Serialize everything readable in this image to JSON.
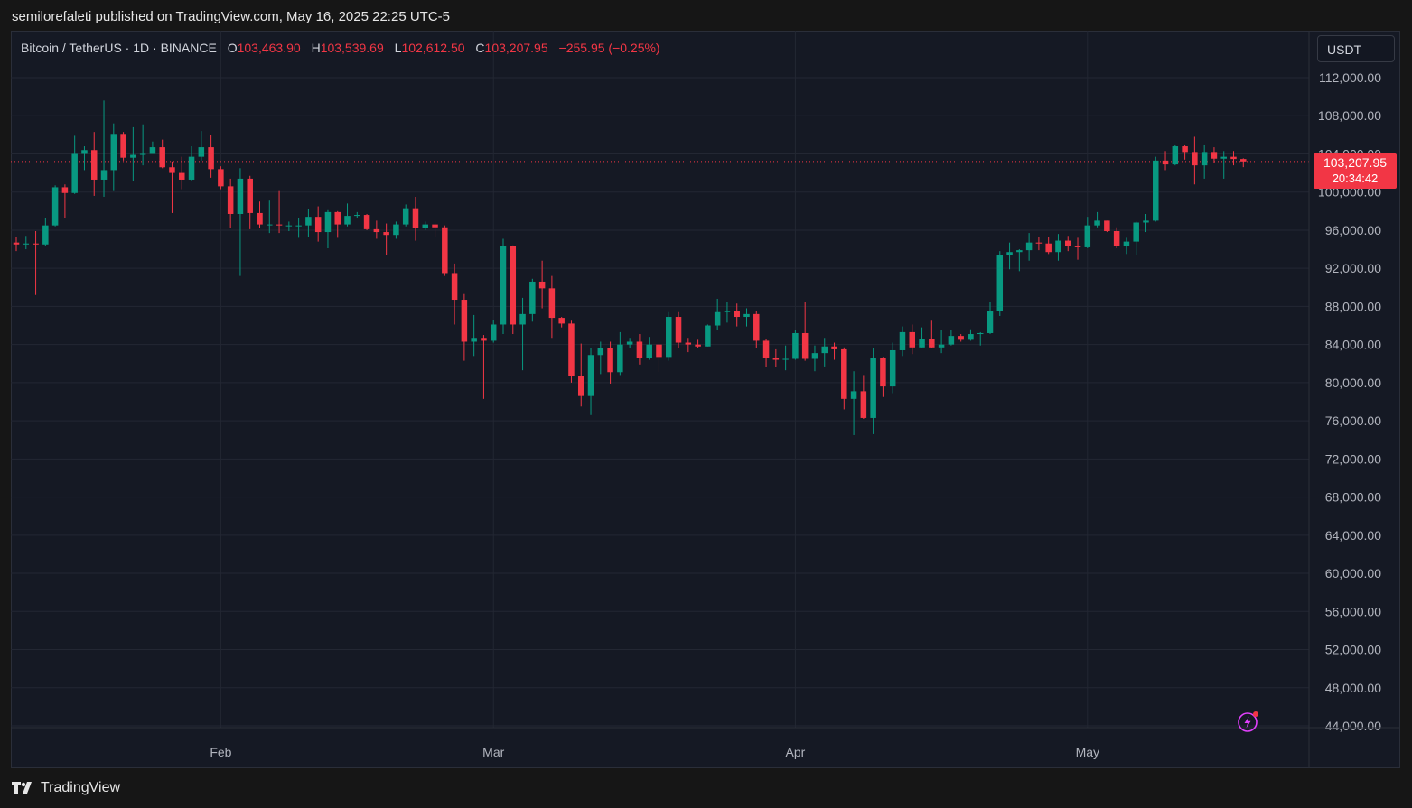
{
  "header": {
    "publish_text": "semilorefaleti published on TradingView.com, May 16, 2025 22:25 UTC-5"
  },
  "legend": {
    "symbol": "Bitcoin / TetherUS · 1D · BINANCE",
    "open_label": "O",
    "open": "103,463.90",
    "high_label": "H",
    "high": "103,539.69",
    "low_label": "L",
    "low": "102,612.50",
    "close_label": "C",
    "close": "103,207.95",
    "change": "−255.95 (−0.25%)"
  },
  "currency_button": "USDT",
  "price_tag": {
    "price": "103,207.95",
    "countdown": "20:34:42"
  },
  "footer": {
    "brand": "TradingView"
  },
  "icons": {
    "alert": "lightning-icon",
    "logo": "tradingview-logo-icon"
  },
  "colors": {
    "background": "#151924",
    "up": "#089981",
    "down": "#f23645",
    "grid": "#232733",
    "axis_text": "#b2b5be"
  },
  "chart_data": {
    "type": "candlestick",
    "ylim": [
      43000,
      114000
    ],
    "y_ticks": [
      "112,000.00",
      "108,000.00",
      "104,000.00",
      "100,000.00",
      "96,000.00",
      "92,000.00",
      "88,000.00",
      "84,000.00",
      "80,000.00",
      "76,000.00",
      "72,000.00",
      "68,000.00",
      "64,000.00",
      "60,000.00",
      "56,000.00",
      "52,000.00",
      "48,000.00",
      "44,000.00"
    ],
    "x_ticks": [
      {
        "label": "Feb",
        "date": "2025-02-01"
      },
      {
        "label": "Mar",
        "date": "2025-03-01"
      },
      {
        "label": "Apr",
        "date": "2025-04-01"
      },
      {
        "label": "May",
        "date": "2025-05-01"
      }
    ],
    "last_price": 103207.95,
    "candles": [
      {
        "d": "2025-01-11",
        "o": 94700,
        "h": 95300,
        "l": 93800,
        "c": 94500
      },
      {
        "d": "2025-01-12",
        "o": 94500,
        "h": 95400,
        "l": 94000,
        "c": 94600
      },
      {
        "d": "2025-01-13",
        "o": 94600,
        "h": 95900,
        "l": 89200,
        "c": 94500
      },
      {
        "d": "2025-01-14",
        "o": 94500,
        "h": 97300,
        "l": 94300,
        "c": 96500
      },
      {
        "d": "2025-01-15",
        "o": 96500,
        "h": 100700,
        "l": 96400,
        "c": 100500
      },
      {
        "d": "2025-01-16",
        "o": 100500,
        "h": 100800,
        "l": 97300,
        "c": 99900
      },
      {
        "d": "2025-01-17",
        "o": 99900,
        "h": 105900,
        "l": 99800,
        "c": 104000
      },
      {
        "d": "2025-01-18",
        "o": 104000,
        "h": 104800,
        "l": 102300,
        "c": 104400
      },
      {
        "d": "2025-01-19",
        "o": 104400,
        "h": 106300,
        "l": 99600,
        "c": 101300
      },
      {
        "d": "2025-01-20",
        "o": 101300,
        "h": 109600,
        "l": 99500,
        "c": 102300
      },
      {
        "d": "2025-01-21",
        "o": 102300,
        "h": 107200,
        "l": 100100,
        "c": 106100
      },
      {
        "d": "2025-01-22",
        "o": 106100,
        "h": 106300,
        "l": 103300,
        "c": 103600
      },
      {
        "d": "2025-01-23",
        "o": 103600,
        "h": 106800,
        "l": 101200,
        "c": 103900
      },
      {
        "d": "2025-01-24",
        "o": 103900,
        "h": 107100,
        "l": 102800,
        "c": 104000
      },
      {
        "d": "2025-01-25",
        "o": 104000,
        "h": 105300,
        "l": 104000,
        "c": 104700
      },
      {
        "d": "2025-01-26",
        "o": 104700,
        "h": 105500,
        "l": 102500,
        "c": 102600
      },
      {
        "d": "2025-01-27",
        "o": 102600,
        "h": 103200,
        "l": 97800,
        "c": 102000
      },
      {
        "d": "2025-01-28",
        "o": 102000,
        "h": 103700,
        "l": 100300,
        "c": 101300
      },
      {
        "d": "2025-01-29",
        "o": 101300,
        "h": 104800,
        "l": 101200,
        "c": 103700
      },
      {
        "d": "2025-01-30",
        "o": 103700,
        "h": 106400,
        "l": 103300,
        "c": 104700
      },
      {
        "d": "2025-01-31",
        "o": 104700,
        "h": 106000,
        "l": 101500,
        "c": 102400
      },
      {
        "d": "2025-02-01",
        "o": 102400,
        "h": 102700,
        "l": 100300,
        "c": 100600
      },
      {
        "d": "2025-02-02",
        "o": 100600,
        "h": 101400,
        "l": 96200,
        "c": 97700
      },
      {
        "d": "2025-02-03",
        "o": 97700,
        "h": 102500,
        "l": 91200,
        "c": 101400
      },
      {
        "d": "2025-02-04",
        "o": 101400,
        "h": 101700,
        "l": 96100,
        "c": 97800
      },
      {
        "d": "2025-02-05",
        "o": 97800,
        "h": 99000,
        "l": 96200,
        "c": 96600
      },
      {
        "d": "2025-02-06",
        "o": 96600,
        "h": 99100,
        "l": 95700,
        "c": 96600
      },
      {
        "d": "2025-02-07",
        "o": 96600,
        "h": 100100,
        "l": 95700,
        "c": 96500
      },
      {
        "d": "2025-02-08",
        "o": 96500,
        "h": 96900,
        "l": 95900,
        "c": 96500
      },
      {
        "d": "2025-02-09",
        "o": 96500,
        "h": 97300,
        "l": 95200,
        "c": 96500
      },
      {
        "d": "2025-02-10",
        "o": 96500,
        "h": 98200,
        "l": 95300,
        "c": 97400
      },
      {
        "d": "2025-02-11",
        "o": 97400,
        "h": 98500,
        "l": 94800,
        "c": 95800
      },
      {
        "d": "2025-02-12",
        "o": 95800,
        "h": 98100,
        "l": 94100,
        "c": 97900
      },
      {
        "d": "2025-02-13",
        "o": 97900,
        "h": 98000,
        "l": 95200,
        "c": 96600
      },
      {
        "d": "2025-02-14",
        "o": 96600,
        "h": 98800,
        "l": 96400,
        "c": 97500
      },
      {
        "d": "2025-02-15",
        "o": 97500,
        "h": 97900,
        "l": 97300,
        "c": 97600
      },
      {
        "d": "2025-02-16",
        "o": 97600,
        "h": 97700,
        "l": 96000,
        "c": 96100
      },
      {
        "d": "2025-02-17",
        "o": 96100,
        "h": 97000,
        "l": 95100,
        "c": 95800
      },
      {
        "d": "2025-02-18",
        "o": 95800,
        "h": 96700,
        "l": 93400,
        "c": 95500
      },
      {
        "d": "2025-02-19",
        "o": 95500,
        "h": 96900,
        "l": 95100,
        "c": 96600
      },
      {
        "d": "2025-02-20",
        "o": 96600,
        "h": 98700,
        "l": 96400,
        "c": 98300
      },
      {
        "d": "2025-02-21",
        "o": 98300,
        "h": 99500,
        "l": 94900,
        "c": 96200
      },
      {
        "d": "2025-02-22",
        "o": 96200,
        "h": 96900,
        "l": 96000,
        "c": 96600
      },
      {
        "d": "2025-02-23",
        "o": 96600,
        "h": 96700,
        "l": 95300,
        "c": 96300
      },
      {
        "d": "2025-02-24",
        "o": 96300,
        "h": 96500,
        "l": 91200,
        "c": 91500
      },
      {
        "d": "2025-02-25",
        "o": 91500,
        "h": 92500,
        "l": 86100,
        "c": 88700
      },
      {
        "d": "2025-02-26",
        "o": 88700,
        "h": 89300,
        "l": 82300,
        "c": 84300
      },
      {
        "d": "2025-02-27",
        "o": 84300,
        "h": 87100,
        "l": 82800,
        "c": 84700
      },
      {
        "d": "2025-02-28",
        "o": 84700,
        "h": 85000,
        "l": 78300,
        "c": 84400
      },
      {
        "d": "2025-03-01",
        "o": 84400,
        "h": 86600,
        "l": 84200,
        "c": 86100
      },
      {
        "d": "2025-03-02",
        "o": 86100,
        "h": 95100,
        "l": 85100,
        "c": 94300
      },
      {
        "d": "2025-03-03",
        "o": 94300,
        "h": 94400,
        "l": 85100,
        "c": 86100
      },
      {
        "d": "2025-03-04",
        "o": 86100,
        "h": 88900,
        "l": 81300,
        "c": 87200
      },
      {
        "d": "2025-03-05",
        "o": 87200,
        "h": 90900,
        "l": 86400,
        "c": 90600
      },
      {
        "d": "2025-03-06",
        "o": 90600,
        "h": 92800,
        "l": 87800,
        "c": 89900
      },
      {
        "d": "2025-03-07",
        "o": 89900,
        "h": 91200,
        "l": 84700,
        "c": 86800
      },
      {
        "d": "2025-03-08",
        "o": 86800,
        "h": 86900,
        "l": 85800,
        "c": 86200
      },
      {
        "d": "2025-03-09",
        "o": 86200,
        "h": 86500,
        "l": 80000,
        "c": 80700
      },
      {
        "d": "2025-03-10",
        "o": 80700,
        "h": 84100,
        "l": 77500,
        "c": 78600
      },
      {
        "d": "2025-03-11",
        "o": 78600,
        "h": 83600,
        "l": 76600,
        "c": 82900
      },
      {
        "d": "2025-03-12",
        "o": 82900,
        "h": 84300,
        "l": 80900,
        "c": 83600
      },
      {
        "d": "2025-03-13",
        "o": 83600,
        "h": 84300,
        "l": 79900,
        "c": 81100
      },
      {
        "d": "2025-03-14",
        "o": 81100,
        "h": 85300,
        "l": 80800,
        "c": 84000
      },
      {
        "d": "2025-03-15",
        "o": 84000,
        "h": 84700,
        "l": 83600,
        "c": 84300
      },
      {
        "d": "2025-03-16",
        "o": 84300,
        "h": 85100,
        "l": 81900,
        "c": 82600
      },
      {
        "d": "2025-03-17",
        "o": 82600,
        "h": 84800,
        "l": 82400,
        "c": 84000
      },
      {
        "d": "2025-03-18",
        "o": 84000,
        "h": 84100,
        "l": 81100,
        "c": 82700
      },
      {
        "d": "2025-03-19",
        "o": 82700,
        "h": 87400,
        "l": 82300,
        "c": 86900
      },
      {
        "d": "2025-03-20",
        "o": 86900,
        "h": 87400,
        "l": 83600,
        "c": 84200
      },
      {
        "d": "2025-03-21",
        "o": 84200,
        "h": 84700,
        "l": 83200,
        "c": 84000
      },
      {
        "d": "2025-03-22",
        "o": 84000,
        "h": 84500,
        "l": 83600,
        "c": 83800
      },
      {
        "d": "2025-03-23",
        "o": 83800,
        "h": 86100,
        "l": 83800,
        "c": 86000
      },
      {
        "d": "2025-03-24",
        "o": 86000,
        "h": 88800,
        "l": 85500,
        "c": 87400
      },
      {
        "d": "2025-03-25",
        "o": 87400,
        "h": 88500,
        "l": 86300,
        "c": 87500
      },
      {
        "d": "2025-03-26",
        "o": 87500,
        "h": 88300,
        "l": 85900,
        "c": 86900
      },
      {
        "d": "2025-03-27",
        "o": 86900,
        "h": 87800,
        "l": 85900,
        "c": 87200
      },
      {
        "d": "2025-03-28",
        "o": 87200,
        "h": 87500,
        "l": 83600,
        "c": 84400
      },
      {
        "d": "2025-03-29",
        "o": 84400,
        "h": 84600,
        "l": 81600,
        "c": 82600
      },
      {
        "d": "2025-03-30",
        "o": 82600,
        "h": 83500,
        "l": 81600,
        "c": 82400
      },
      {
        "d": "2025-03-31",
        "o": 82400,
        "h": 83900,
        "l": 81300,
        "c": 82500
      },
      {
        "d": "2025-04-01",
        "o": 82500,
        "h": 85500,
        "l": 82400,
        "c": 85200
      },
      {
        "d": "2025-04-02",
        "o": 85200,
        "h": 88500,
        "l": 82300,
        "c": 82500
      },
      {
        "d": "2025-04-03",
        "o": 82500,
        "h": 83900,
        "l": 81200,
        "c": 83100
      },
      {
        "d": "2025-04-04",
        "o": 83100,
        "h": 84700,
        "l": 81700,
        "c": 83800
      },
      {
        "d": "2025-04-05",
        "o": 83800,
        "h": 84200,
        "l": 82400,
        "c": 83500
      },
      {
        "d": "2025-04-06",
        "o": 83500,
        "h": 83700,
        "l": 77200,
        "c": 78300
      },
      {
        "d": "2025-04-07",
        "o": 78300,
        "h": 81200,
        "l": 74500,
        "c": 79100
      },
      {
        "d": "2025-04-08",
        "o": 79100,
        "h": 80800,
        "l": 76200,
        "c": 76300
      },
      {
        "d": "2025-04-09",
        "o": 76300,
        "h": 83600,
        "l": 74600,
        "c": 82600
      },
      {
        "d": "2025-04-10",
        "o": 82600,
        "h": 82700,
        "l": 78500,
        "c": 79600
      },
      {
        "d": "2025-04-11",
        "o": 79600,
        "h": 84200,
        "l": 78900,
        "c": 83400
      },
      {
        "d": "2025-04-12",
        "o": 83400,
        "h": 85900,
        "l": 82800,
        "c": 85300
      },
      {
        "d": "2025-04-13",
        "o": 85300,
        "h": 86100,
        "l": 83000,
        "c": 83700
      },
      {
        "d": "2025-04-14",
        "o": 83700,
        "h": 85800,
        "l": 83700,
        "c": 84600
      },
      {
        "d": "2025-04-15",
        "o": 84600,
        "h": 86500,
        "l": 83600,
        "c": 83700
      },
      {
        "d": "2025-04-16",
        "o": 83700,
        "h": 85500,
        "l": 83100,
        "c": 84000
      },
      {
        "d": "2025-04-17",
        "o": 84000,
        "h": 85500,
        "l": 83900,
        "c": 84900
      },
      {
        "d": "2025-04-18",
        "o": 84900,
        "h": 85100,
        "l": 84300,
        "c": 84500
      },
      {
        "d": "2025-04-19",
        "o": 84500,
        "h": 85600,
        "l": 84400,
        "c": 85100
      },
      {
        "d": "2025-04-20",
        "o": 85100,
        "h": 85300,
        "l": 83900,
        "c": 85200
      },
      {
        "d": "2025-04-21",
        "o": 85200,
        "h": 88500,
        "l": 85100,
        "c": 87500
      },
      {
        "d": "2025-04-22",
        "o": 87500,
        "h": 93800,
        "l": 87000,
        "c": 93400
      },
      {
        "d": "2025-04-23",
        "o": 93400,
        "h": 94700,
        "l": 91900,
        "c": 93700
      },
      {
        "d": "2025-04-24",
        "o": 93700,
        "h": 94000,
        "l": 91700,
        "c": 93900
      },
      {
        "d": "2025-04-25",
        "o": 93900,
        "h": 95700,
        "l": 92800,
        "c": 94700
      },
      {
        "d": "2025-04-26",
        "o": 94700,
        "h": 95300,
        "l": 93900,
        "c": 94600
      },
      {
        "d": "2025-04-27",
        "o": 94600,
        "h": 95300,
        "l": 93500,
        "c": 93700
      },
      {
        "d": "2025-04-28",
        "o": 93700,
        "h": 95600,
        "l": 92800,
        "c": 94900
      },
      {
        "d": "2025-04-29",
        "o": 94900,
        "h": 95400,
        "l": 93800,
        "c": 94300
      },
      {
        "d": "2025-04-30",
        "o": 94300,
        "h": 95200,
        "l": 92900,
        "c": 94200
      },
      {
        "d": "2025-05-01",
        "o": 94200,
        "h": 97400,
        "l": 94100,
        "c": 96500
      },
      {
        "d": "2025-05-02",
        "o": 96500,
        "h": 97900,
        "l": 96300,
        "c": 97000
      },
      {
        "d": "2025-05-03",
        "o": 97000,
        "h": 97000,
        "l": 95800,
        "c": 95900
      },
      {
        "d": "2025-05-04",
        "o": 95900,
        "h": 96300,
        "l": 94100,
        "c": 94300
      },
      {
        "d": "2025-05-05",
        "o": 94300,
        "h": 95200,
        "l": 93500,
        "c": 94800
      },
      {
        "d": "2025-05-06",
        "o": 94800,
        "h": 96900,
        "l": 93400,
        "c": 96800
      },
      {
        "d": "2025-05-07",
        "o": 96800,
        "h": 97700,
        "l": 95800,
        "c": 97000
      },
      {
        "d": "2025-05-08",
        "o": 97000,
        "h": 103700,
        "l": 96900,
        "c": 103300
      },
      {
        "d": "2025-05-09",
        "o": 103300,
        "h": 104300,
        "l": 102300,
        "c": 102900
      },
      {
        "d": "2025-05-10",
        "o": 102900,
        "h": 104900,
        "l": 102800,
        "c": 104800
      },
      {
        "d": "2025-05-11",
        "o": 104800,
        "h": 104900,
        "l": 103400,
        "c": 104200
      },
      {
        "d": "2025-05-12",
        "o": 104200,
        "h": 105800,
        "l": 100800,
        "c": 102800
      },
      {
        "d": "2025-05-13",
        "o": 102800,
        "h": 104900,
        "l": 101400,
        "c": 104200
      },
      {
        "d": "2025-05-14",
        "o": 104200,
        "h": 104700,
        "l": 103100,
        "c": 103500
      },
      {
        "d": "2025-05-15",
        "o": 103500,
        "h": 104300,
        "l": 101400,
        "c": 103700
      },
      {
        "d": "2025-05-16",
        "o": 103700,
        "h": 104300,
        "l": 102800,
        "c": 103464
      },
      {
        "d": "2025-05-17",
        "o": 103463.9,
        "h": 103539.69,
        "l": 102612.5,
        "c": 103207.95
      }
    ]
  }
}
